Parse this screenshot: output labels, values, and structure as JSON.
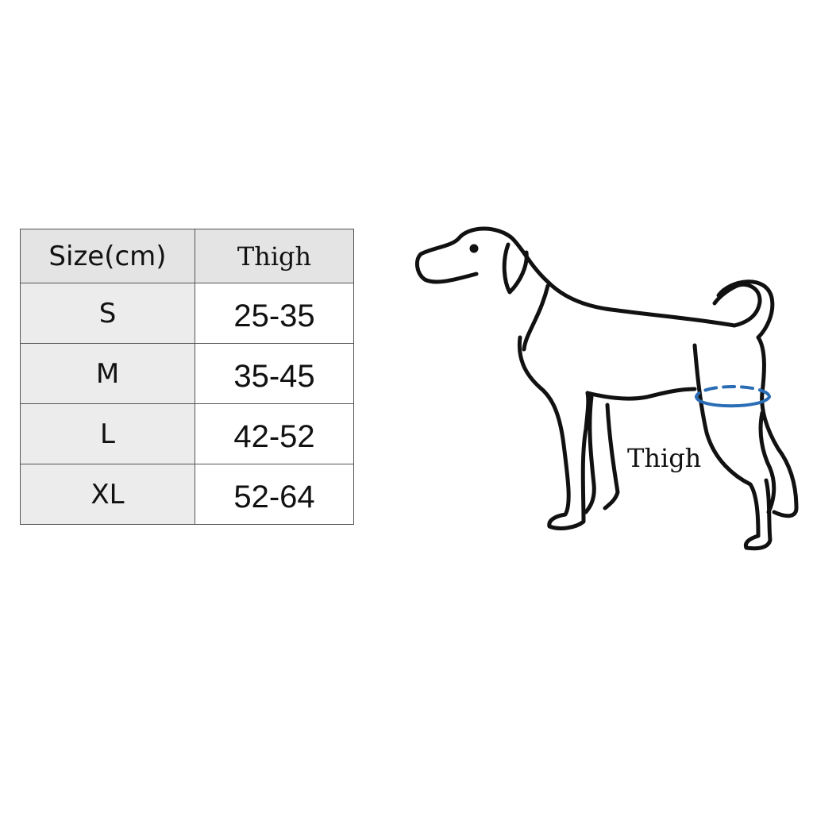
{
  "size_table": {
    "headers": [
      "Size(cm)",
      "Thigh"
    ],
    "rows": [
      {
        "size": "S",
        "thigh": "25-35"
      },
      {
        "size": "M",
        "thigh": "35-45"
      },
      {
        "size": "L",
        "thigh": "42-52"
      },
      {
        "size": "XL",
        "thigh": "52-64"
      }
    ]
  },
  "illustration": {
    "subject": "dog-outline",
    "measure_label": "Thigh",
    "measure_color": "#2a6db5"
  }
}
